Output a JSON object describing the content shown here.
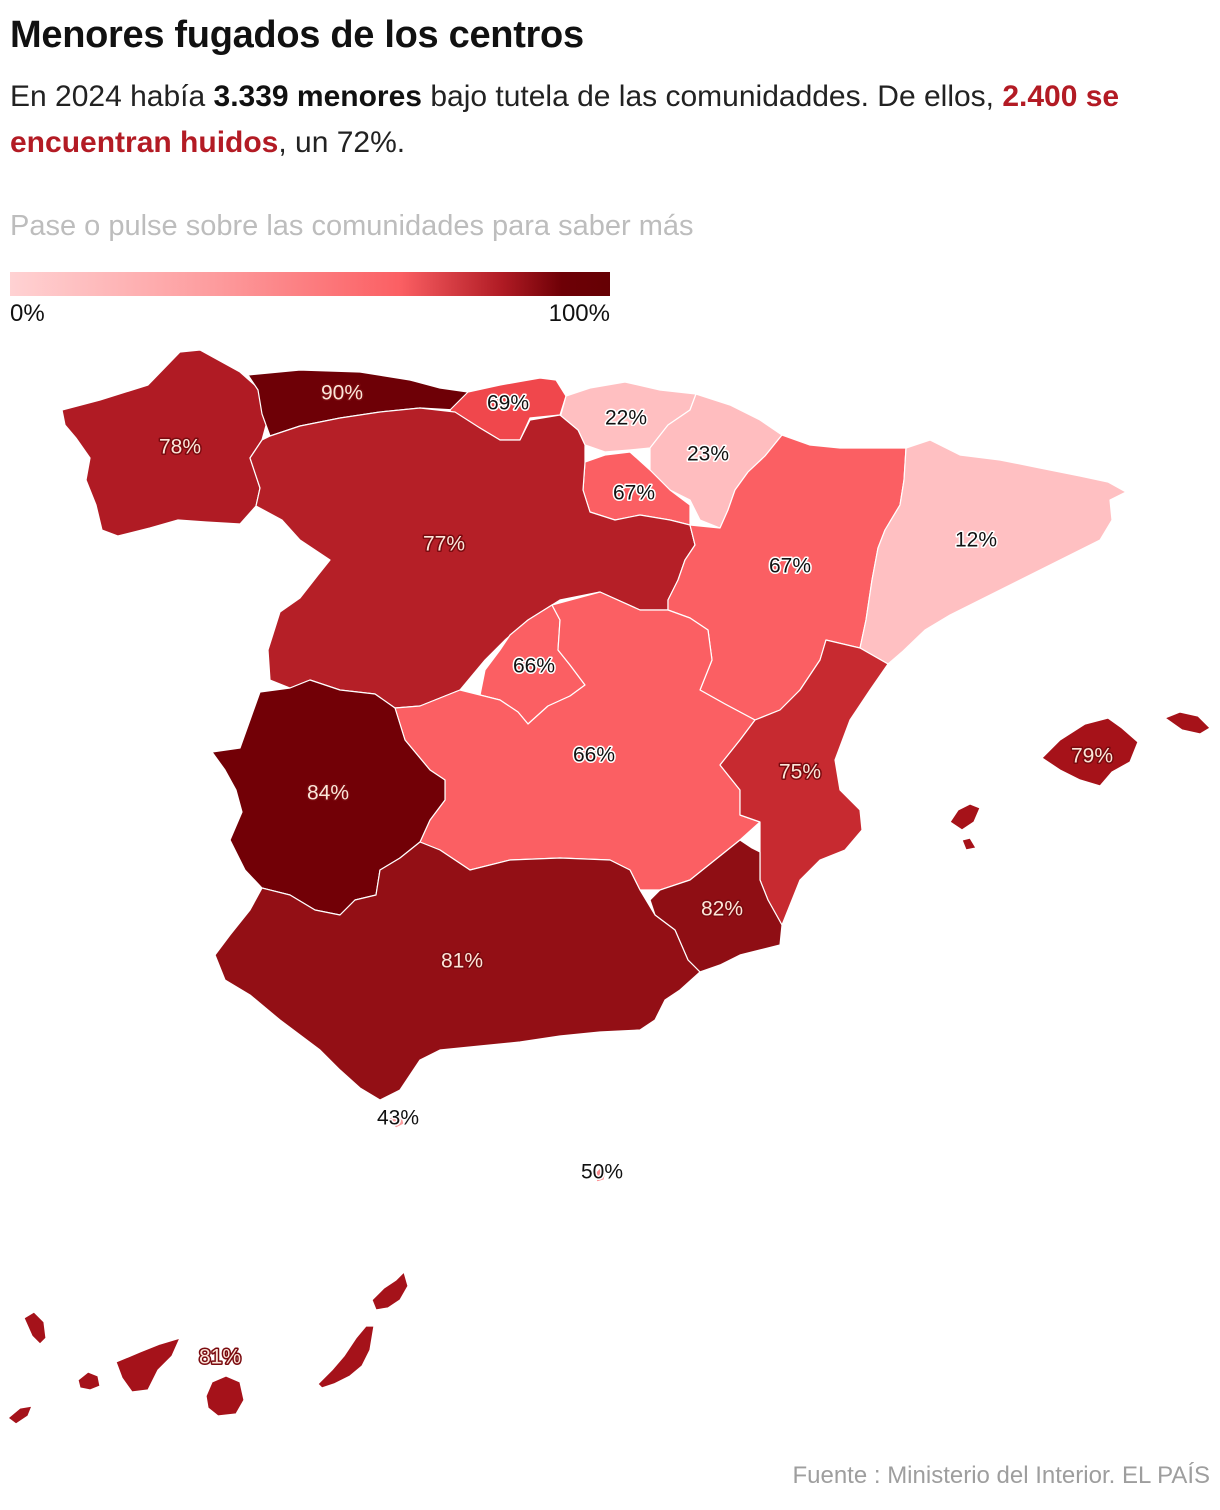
{
  "header": {
    "title": "Menores fugados de los centros",
    "sub_1": "En 2024 había ",
    "sub_bold": "3.339 menores",
    "sub_2": " bajo tutela de las comunidaddes. De ellos, ",
    "sub_red": "2.400 se encuentran huidos",
    "sub_3": ", un 72%.",
    "hint": "Pase o pulse sobre las comunidades para saber más"
  },
  "legend": {
    "min_label": "0%",
    "max_label": "100%",
    "colors": [
      "#ffd2d3",
      "#fd9a9c",
      "#fb5f63",
      "#b01b24",
      "#6e0006",
      "#650004"
    ]
  },
  "map": {
    "regions": [
      {
        "id": "galicia",
        "label": "78%",
        "value": 78,
        "color": "#b01b24"
      },
      {
        "id": "asturias",
        "label": "90%",
        "value": 90,
        "color": "#6e0006"
      },
      {
        "id": "cantabria",
        "label": "69%",
        "value": 69,
        "color": "#f0474c"
      },
      {
        "id": "pais-vasco",
        "label": "22%",
        "value": 22,
        "color": "#ffbfc1"
      },
      {
        "id": "navarra",
        "label": "23%",
        "value": 23,
        "color": "#ffbdbf"
      },
      {
        "id": "la-rioja",
        "label": "67%",
        "value": 67,
        "color": "#fb5f63"
      },
      {
        "id": "castilla-leon",
        "label": "77%",
        "value": 77,
        "color": "#b51f27"
      },
      {
        "id": "aragon",
        "label": "67%",
        "value": 67,
        "color": "#fb5f63"
      },
      {
        "id": "cataluna",
        "label": "12%",
        "value": 12,
        "color": "#ffc0c2"
      },
      {
        "id": "madrid",
        "label": "66%",
        "value": 66,
        "color": "#fb5f63"
      },
      {
        "id": "castilla-la-mancha",
        "label": "66%",
        "value": 66,
        "color": "#fb5f63"
      },
      {
        "id": "extremadura",
        "label": "84%",
        "value": 84,
        "color": "#720006"
      },
      {
        "id": "comunidad-valenciana",
        "label": "75%",
        "value": 75,
        "color": "#c72a30"
      },
      {
        "id": "murcia",
        "label": "82%",
        "value": 82,
        "color": "#8f0e14"
      },
      {
        "id": "andalucia",
        "label": "81%",
        "value": 81,
        "color": "#930f15"
      },
      {
        "id": "baleares",
        "label": "79%",
        "value": 79,
        "color": "#a61219"
      },
      {
        "id": "ceuta",
        "label": "43%",
        "value": 43,
        "color": "#fd9a9c"
      },
      {
        "id": "melilla",
        "label": "50%",
        "value": 50,
        "color": "#fc8a8d"
      },
      {
        "id": "canarias",
        "label": "81%",
        "value": 81,
        "color": "#a5121a"
      }
    ]
  },
  "source": "Fuente : Ministerio del Interior. EL PAÍS"
}
